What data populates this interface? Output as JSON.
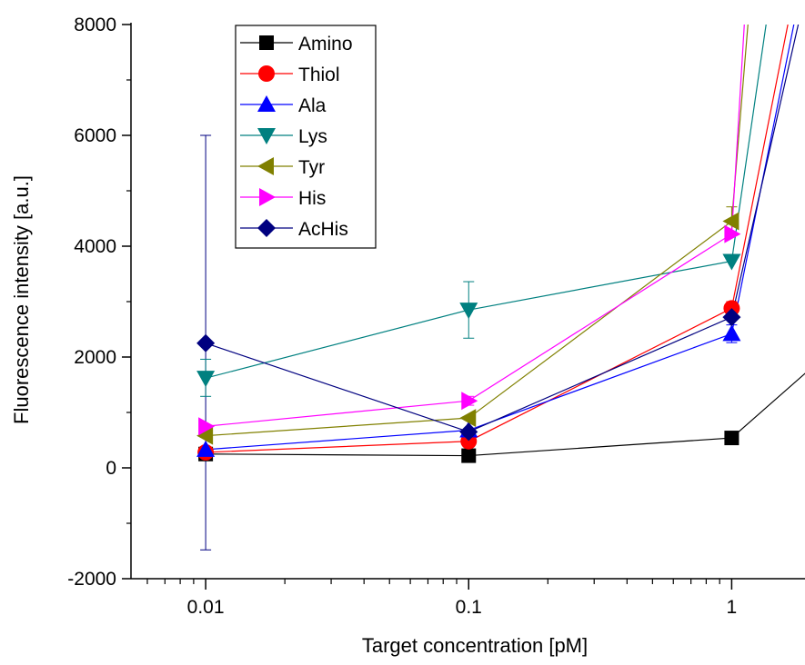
{
  "chart_data": {
    "type": "line",
    "xscale": "log",
    "xlabel": "Target concentration [pM]",
    "ylabel": "Fluorescence intensity [a.u.]",
    "xlim": [
      0.0052,
      1.9
    ],
    "ylim": [
      -2000,
      8000
    ],
    "xticks": [
      0.01,
      0.1,
      1
    ],
    "xtick_labels": [
      "0.01",
      "0.1",
      "1"
    ],
    "yticks": [
      -2000,
      0,
      2000,
      4000,
      6000,
      8000
    ],
    "ytick_labels": [
      "-2000",
      "0",
      "2000",
      "4000",
      "6000",
      "8000"
    ],
    "legend_position": "top-left",
    "grid": false,
    "series": [
      {
        "name": "Amino",
        "color": "#000000",
        "marker": "square",
        "x": [
          0.01,
          0.1,
          1,
          2.5
        ],
        "y": [
          250,
          220,
          540,
          2200
        ]
      },
      {
        "name": "Thiol",
        "color": "#ff0000",
        "marker": "circle",
        "x": [
          0.01,
          0.1,
          1,
          1.8
        ],
        "y": [
          280,
          480,
          2880,
          9000
        ]
      },
      {
        "name": "Ala",
        "color": "#0000ff",
        "marker": "triangle-up",
        "x": [
          0.01,
          0.1,
          1,
          1.9
        ],
        "y": [
          330,
          680,
          2420,
          9000
        ]
      },
      {
        "name": "Lys",
        "color": "#008080",
        "marker": "triangle-down",
        "x": [
          0.01,
          0.1,
          1,
          1.45
        ],
        "y": [
          1620,
          2850,
          3730,
          9000
        ]
      },
      {
        "name": "Tyr",
        "color": "#808000",
        "marker": "triangle-left",
        "x": [
          0.01,
          0.1,
          1,
          1.2
        ],
        "y": [
          580,
          900,
          4450,
          9000
        ]
      },
      {
        "name": "His",
        "color": "#ff00ff",
        "marker": "triangle-right",
        "x": [
          0.01,
          0.1,
          1,
          1.15
        ],
        "y": [
          750,
          1210,
          4220,
          9000
        ]
      },
      {
        "name": "AcHis",
        "color": "#000080",
        "marker": "diamond",
        "x": [
          0.01,
          0.1,
          1,
          2.0
        ],
        "y": [
          2250,
          650,
          2720,
          9000
        ]
      }
    ],
    "error_bars": [
      {
        "series": "AcHis",
        "x": 0.01,
        "low": -1480,
        "high": 6000
      },
      {
        "series": "Lys",
        "x": 0.01,
        "low": 1290,
        "high": 1960
      },
      {
        "series": "Lys",
        "x": 0.1,
        "low": 2340,
        "high": 3360
      },
      {
        "series": "Tyr",
        "x": 1,
        "low": 4200,
        "high": 4710
      },
      {
        "series": "Thiol",
        "x": 1,
        "low": 2760,
        "high": 3000
      },
      {
        "series": "Ala",
        "x": 1,
        "low": 2260,
        "high": 2580
      },
      {
        "series": "His",
        "x": 0.1,
        "low": 1130,
        "high": 1290
      }
    ]
  }
}
